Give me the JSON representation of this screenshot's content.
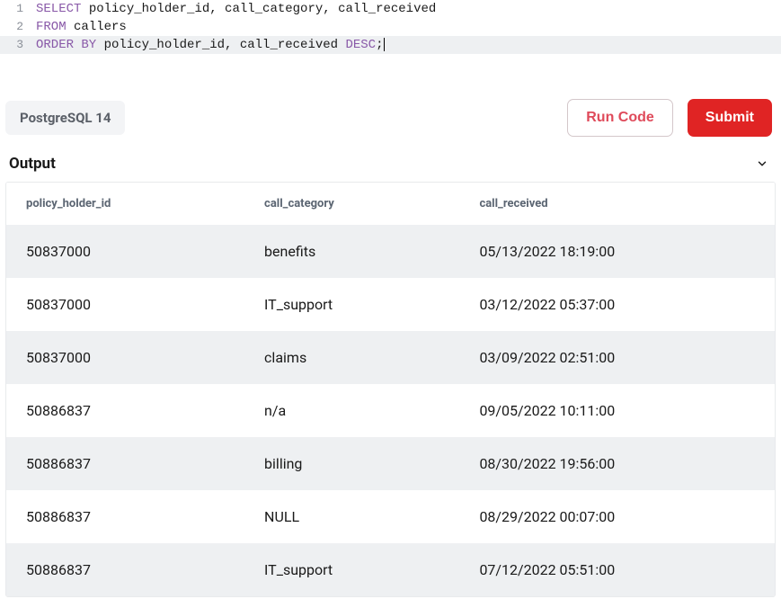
{
  "editor": {
    "lines": [
      {
        "num": "1",
        "active": false,
        "tokens": [
          {
            "t": "SELECT",
            "cls": "kw"
          },
          {
            "t": " policy_holder_id, call_category, call_received",
            "cls": "id"
          }
        ]
      },
      {
        "num": "2",
        "active": false,
        "tokens": [
          {
            "t": "FROM",
            "cls": "kw"
          },
          {
            "t": " callers",
            "cls": "id"
          }
        ]
      },
      {
        "num": "3",
        "active": true,
        "tokens": [
          {
            "t": "ORDER BY",
            "cls": "kw"
          },
          {
            "t": " policy_holder_id, call_received ",
            "cls": "id"
          },
          {
            "t": "DESC",
            "cls": "kw"
          },
          {
            "t": ";",
            "cls": "id"
          }
        ],
        "cursor": true
      }
    ]
  },
  "db_badge": "PostgreSQL 14",
  "buttons": {
    "run": "Run Code",
    "submit": "Submit"
  },
  "output": {
    "title": "Output",
    "columns": [
      "policy_holder_id",
      "call_category",
      "call_received"
    ],
    "rows": [
      [
        "50837000",
        "benefits",
        "05/13/2022 18:19:00"
      ],
      [
        "50837000",
        "IT_support",
        "03/12/2022 05:37:00"
      ],
      [
        "50837000",
        "claims",
        "03/09/2022 02:51:00"
      ],
      [
        "50886837",
        "n/a",
        "09/05/2022 10:11:00"
      ],
      [
        "50886837",
        "billing",
        "08/30/2022 19:56:00"
      ],
      [
        "50886837",
        "NULL",
        "08/29/2022 00:07:00"
      ],
      [
        "50886837",
        "IT_support",
        "07/12/2022 05:51:00"
      ]
    ]
  },
  "colors": {
    "keyword": "#8959a8",
    "text": "#1a1a1a",
    "line_number": "#8a8f98",
    "active_line_bg": "#eef0f2",
    "badge_bg": "#f3f4f6",
    "badge_fg": "#5b6068",
    "run_fg": "#df4a5a",
    "run_border": "#d4c7ca",
    "submit_bg": "#e02424",
    "submit_fg": "#ffffff",
    "th_fg": "#5b6572",
    "row_stripe": "#eef0f2",
    "border": "#e8eaec"
  }
}
